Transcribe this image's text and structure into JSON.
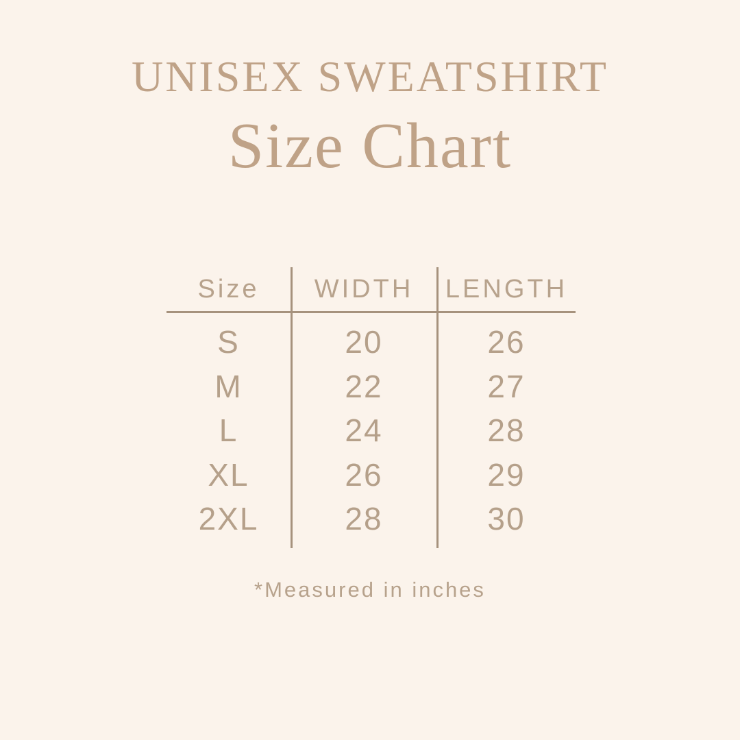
{
  "page": {
    "background_color": "#fbf3eb",
    "title_color": "#bfa287",
    "table_text_color": "#b5a08a",
    "line_color": "#a6927d"
  },
  "header": {
    "product": "UNISEX SWEATSHIRT",
    "title": "Size Chart"
  },
  "table": {
    "columns": [
      "Size",
      "WIDTH",
      "LENGTH"
    ],
    "rows": [
      {
        "size": "S",
        "width": "20",
        "length": "26"
      },
      {
        "size": "M",
        "width": "22",
        "length": "27"
      },
      {
        "size": "L",
        "width": "24",
        "length": "28"
      },
      {
        "size": "XL",
        "width": "26",
        "length": "29"
      },
      {
        "size": "2XL",
        "width": "28",
        "length": "30"
      }
    ]
  },
  "footnote": "*Measured in inches",
  "chart_data": {
    "type": "table",
    "title": "UNISEX SWEATSHIRT Size Chart",
    "columns": [
      "Size",
      "WIDTH",
      "LENGTH"
    ],
    "rows": [
      [
        "S",
        20,
        26
      ],
      [
        "M",
        22,
        27
      ],
      [
        "L",
        24,
        28
      ],
      [
        "XL",
        26,
        29
      ],
      [
        "2XL",
        28,
        30
      ]
    ],
    "units": "inches",
    "notes": "*Measured in inches"
  }
}
